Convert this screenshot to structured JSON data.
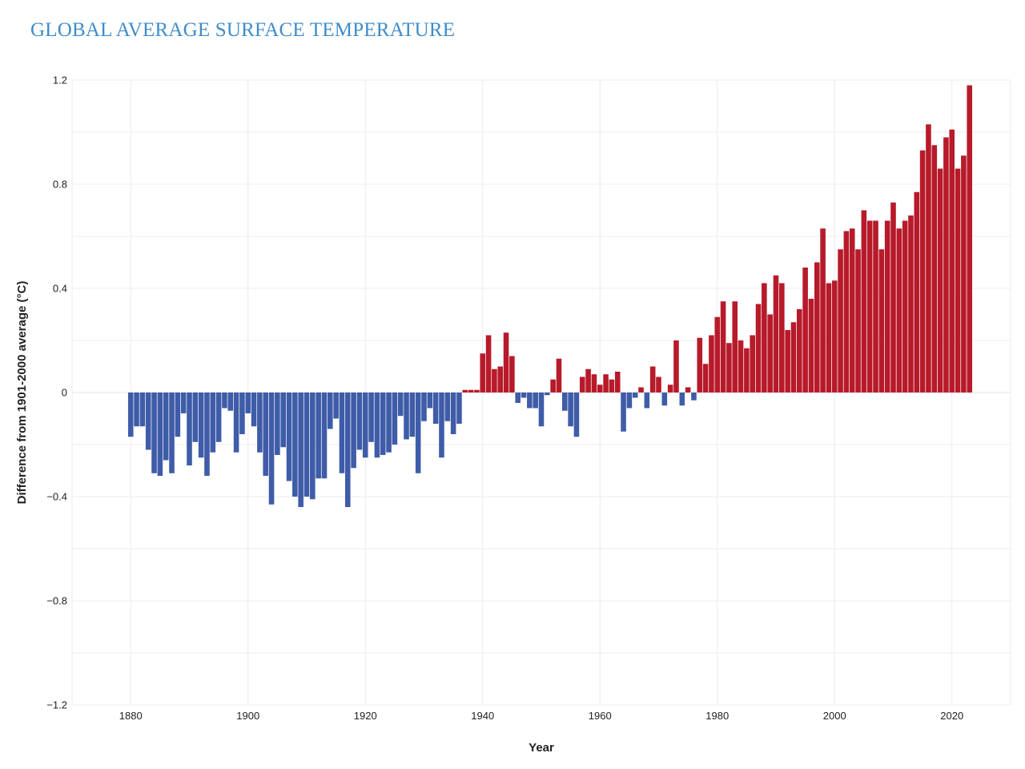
{
  "chart_data": {
    "type": "bar",
    "title": "GLOBAL AVERAGE SURFACE TEMPERATURE",
    "xlabel": "Year",
    "ylabel": "Difference from 1901-2000 average (°C)",
    "xlim": [
      1870,
      2030
    ],
    "ylim": [
      -1.2,
      1.2
    ],
    "x_ticks": [
      1880,
      1900,
      1920,
      1940,
      1960,
      1980,
      2000,
      2020
    ],
    "x_tick_labels": [
      "1880",
      "1900",
      "1920",
      "1940",
      "1960",
      "1980",
      "2000",
      "2020"
    ],
    "y_ticks": [
      -1.2,
      -0.8,
      -0.4,
      0,
      0.4,
      0.8,
      1.2
    ],
    "y_tick_labels": [
      "−1.2",
      "−0.8",
      "−0.4",
      "0",
      "0.4",
      "0.8",
      "1.2"
    ],
    "grid": true,
    "colors": {
      "positive": "#b71a2a",
      "negative": "#3f5ca8",
      "title": "#3f8ccb"
    },
    "x": [
      1880,
      1881,
      1882,
      1883,
      1884,
      1885,
      1886,
      1887,
      1888,
      1889,
      1890,
      1891,
      1892,
      1893,
      1894,
      1895,
      1896,
      1897,
      1898,
      1899,
      1900,
      1901,
      1902,
      1903,
      1904,
      1905,
      1906,
      1907,
      1908,
      1909,
      1910,
      1911,
      1912,
      1913,
      1914,
      1915,
      1916,
      1917,
      1918,
      1919,
      1920,
      1921,
      1922,
      1923,
      1924,
      1925,
      1926,
      1927,
      1928,
      1929,
      1930,
      1931,
      1932,
      1933,
      1934,
      1935,
      1936,
      1937,
      1938,
      1939,
      1940,
      1941,
      1942,
      1943,
      1944,
      1945,
      1946,
      1947,
      1948,
      1949,
      1950,
      1951,
      1952,
      1953,
      1954,
      1955,
      1956,
      1957,
      1958,
      1959,
      1960,
      1961,
      1962,
      1963,
      1964,
      1965,
      1966,
      1967,
      1968,
      1969,
      1970,
      1971,
      1972,
      1973,
      1974,
      1975,
      1976,
      1977,
      1978,
      1979,
      1980,
      1981,
      1982,
      1983,
      1984,
      1985,
      1986,
      1987,
      1988,
      1989,
      1990,
      1991,
      1992,
      1993,
      1994,
      1995,
      1996,
      1997,
      1998,
      1999,
      2000,
      2001,
      2002,
      2003,
      2004,
      2005,
      2006,
      2007,
      2008,
      2009,
      2010,
      2011,
      2012,
      2013,
      2014,
      2015,
      2016,
      2017,
      2018,
      2019,
      2020,
      2021,
      2022,
      2023
    ],
    "values": [
      -0.17,
      -0.13,
      -0.13,
      -0.22,
      -0.31,
      -0.32,
      -0.26,
      -0.31,
      -0.17,
      -0.08,
      -0.28,
      -0.19,
      -0.25,
      -0.32,
      -0.23,
      -0.19,
      -0.06,
      -0.07,
      -0.23,
      -0.16,
      -0.08,
      -0.13,
      -0.23,
      -0.32,
      -0.43,
      -0.24,
      -0.21,
      -0.34,
      -0.4,
      -0.44,
      -0.4,
      -0.41,
      -0.33,
      -0.33,
      -0.14,
      -0.1,
      -0.31,
      -0.44,
      -0.29,
      -0.22,
      -0.25,
      -0.19,
      -0.25,
      -0.24,
      -0.23,
      -0.2,
      -0.09,
      -0.18,
      -0.17,
      -0.31,
      -0.11,
      -0.06,
      -0.12,
      -0.25,
      -0.11,
      -0.16,
      -0.12,
      0.01,
      0.01,
      0.01,
      0.15,
      0.22,
      0.09,
      0.1,
      0.23,
      0.14,
      -0.04,
      -0.02,
      -0.06,
      -0.06,
      -0.13,
      -0.01,
      0.05,
      0.13,
      -0.07,
      -0.13,
      -0.17,
      0.06,
      0.09,
      0.07,
      0.03,
      0.07,
      0.05,
      0.08,
      -0.15,
      -0.06,
      -0.02,
      0.02,
      -0.06,
      0.1,
      0.06,
      -0.05,
      0.03,
      0.2,
      -0.05,
      0.02,
      -0.03,
      0.21,
      0.11,
      0.22,
      0.29,
      0.35,
      0.19,
      0.35,
      0.2,
      0.17,
      0.22,
      0.34,
      0.42,
      0.3,
      0.45,
      0.42,
      0.24,
      0.27,
      0.32,
      0.48,
      0.36,
      0.5,
      0.63,
      0.42,
      0.43,
      0.55,
      0.62,
      0.63,
      0.55,
      0.7,
      0.66,
      0.66,
      0.55,
      0.66,
      0.73,
      0.63,
      0.66,
      0.68,
      0.77,
      0.93,
      1.03,
      0.95,
      0.86,
      0.98,
      1.01,
      0.86,
      0.91,
      1.18
    ]
  }
}
